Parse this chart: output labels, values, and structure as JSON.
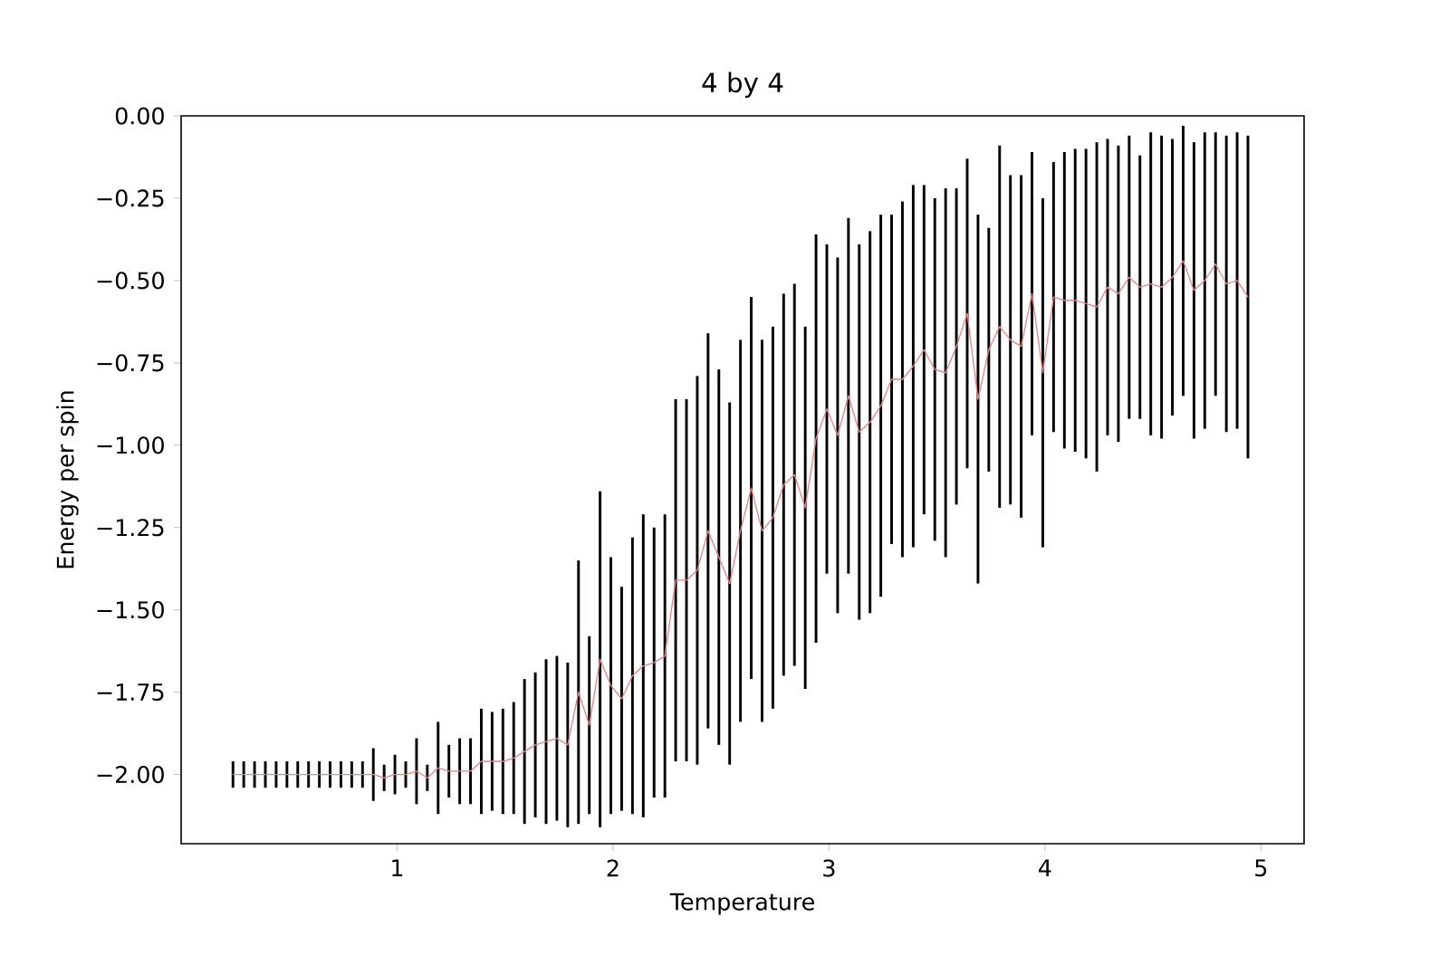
{
  "chart_data": {
    "type": "line",
    "title": "4 by 4",
    "xlabel": "Temperature",
    "ylabel": "Energy per spin",
    "x": [
      0.24,
      0.29,
      0.34,
      0.39,
      0.44,
      0.49,
      0.54,
      0.59,
      0.64,
      0.69,
      0.74,
      0.79,
      0.84,
      0.89,
      0.94,
      0.99,
      1.04,
      1.09,
      1.14,
      1.19,
      1.24,
      1.29,
      1.34,
      1.39,
      1.44,
      1.49,
      1.54,
      1.59,
      1.64,
      1.69,
      1.74,
      1.79,
      1.84,
      1.89,
      1.94,
      1.99,
      2.04,
      2.09,
      2.14,
      2.19,
      2.24,
      2.29,
      2.34,
      2.39,
      2.44,
      2.49,
      2.54,
      2.59,
      2.64,
      2.69,
      2.74,
      2.79,
      2.84,
      2.89,
      2.94,
      2.99,
      3.04,
      3.09,
      3.14,
      3.19,
      3.24,
      3.29,
      3.34,
      3.39,
      3.44,
      3.49,
      3.54,
      3.59,
      3.64,
      3.69,
      3.74,
      3.79,
      3.84,
      3.89,
      3.94,
      3.99,
      4.04,
      4.09,
      4.14,
      4.19,
      4.24,
      4.29,
      4.34,
      4.39,
      4.44,
      4.49,
      4.54,
      4.59,
      4.64,
      4.69,
      4.74,
      4.79,
      4.84,
      4.89,
      4.94
    ],
    "series": [
      {
        "color": "#f08080",
        "values": [
          -2.0,
          -2.0,
          -2.0,
          -2.0,
          -2.0,
          -2.0,
          -2.0,
          -2.0,
          -2.0,
          -2.0,
          -2.0,
          -2.0,
          -2.0,
          -2.0,
          -2.01,
          -2.0,
          -2.0,
          -1.99,
          -2.01,
          -1.98,
          -1.99,
          -1.99,
          -1.99,
          -1.96,
          -1.96,
          -1.96,
          -1.95,
          -1.93,
          -1.91,
          -1.9,
          -1.89,
          -1.91,
          -1.75,
          -1.85,
          -1.65,
          -1.73,
          -1.77,
          -1.7,
          -1.67,
          -1.66,
          -1.64,
          -1.41,
          -1.41,
          -1.38,
          -1.26,
          -1.34,
          -1.42,
          -1.26,
          -1.13,
          -1.26,
          -1.22,
          -1.12,
          -1.09,
          -1.19,
          -0.98,
          -0.89,
          -0.97,
          -0.85,
          -0.96,
          -0.93,
          -0.88,
          -0.8,
          -0.8,
          -0.76,
          -0.71,
          -0.77,
          -0.78,
          -0.7,
          -0.6,
          -0.86,
          -0.71,
          -0.64,
          -0.68,
          -0.7,
          -0.54,
          -0.78,
          -0.55,
          -0.56,
          -0.56,
          -0.57,
          -0.58,
          -0.52,
          -0.54,
          -0.49,
          -0.52,
          -0.51,
          -0.52,
          -0.49,
          -0.44,
          -0.53,
          -0.5,
          -0.45,
          -0.51,
          -0.5,
          -0.55
        ],
        "errors": [
          0.04,
          0.04,
          0.04,
          0.04,
          0.04,
          0.04,
          0.04,
          0.04,
          0.04,
          0.04,
          0.04,
          0.04,
          0.04,
          0.08,
          0.04,
          0.06,
          0.04,
          0.1,
          0.04,
          0.14,
          0.08,
          0.1,
          0.1,
          0.16,
          0.15,
          0.16,
          0.17,
          0.22,
          0.22,
          0.25,
          0.25,
          0.25,
          0.4,
          0.27,
          0.51,
          0.39,
          0.34,
          0.42,
          0.46,
          0.41,
          0.43,
          0.55,
          0.55,
          0.59,
          0.6,
          0.57,
          0.55,
          0.58,
          0.58,
          0.58,
          0.58,
          0.58,
          0.58,
          0.55,
          0.62,
          0.5,
          0.54,
          0.54,
          0.57,
          0.58,
          0.58,
          0.5,
          0.54,
          0.55,
          0.5,
          0.52,
          0.56,
          0.48,
          0.47,
          0.56,
          0.37,
          0.55,
          0.5,
          0.52,
          0.43,
          0.53,
          0.41,
          0.45,
          0.46,
          0.47,
          0.5,
          0.45,
          0.45,
          0.43,
          0.4,
          0.46,
          0.46,
          0.42,
          0.41,
          0.45,
          0.45,
          0.4,
          0.45,
          0.45,
          0.49
        ]
      }
    ],
    "xlim": [
      0,
      5.2
    ],
    "ylim": [
      -2.21,
      0
    ],
    "xticks": [
      1,
      2,
      3,
      4,
      5
    ],
    "yticks": [
      {
        "value": 0,
        "label": "0.00"
      },
      {
        "value": -0.25,
        "label": "−0.25"
      },
      {
        "value": -0.5,
        "label": "−0.50"
      },
      {
        "value": -0.75,
        "label": "−0.75"
      },
      {
        "value": -1.0,
        "label": "−1.00"
      },
      {
        "value": -1.25,
        "label": "−1.25"
      },
      {
        "value": -1.5,
        "label": "−1.50"
      },
      {
        "value": -1.75,
        "label": "−1.75"
      },
      {
        "value": -2.0,
        "label": "−2.00"
      }
    ]
  }
}
